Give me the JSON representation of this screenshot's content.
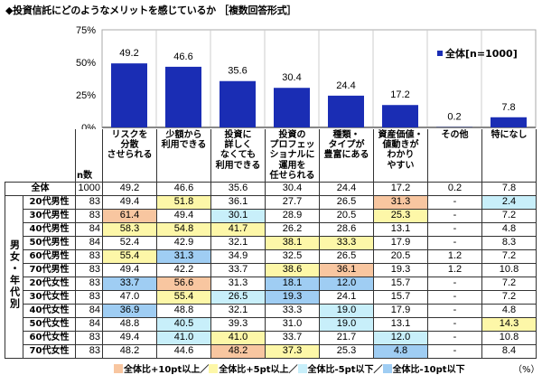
{
  "title": "◆投資信託にどのようなメリットを感じているか ［複数回答形式］",
  "chart_data": {
    "type": "bar",
    "categories": [
      "リスクを分散させられる",
      "少額から利用できる",
      "投資に詳しくなくても利用できる",
      "投資のプロフェッショナルに運用を任せられる",
      "種類・タイプが豊富にある",
      "資産価値・値動きがわかりやすい",
      "その他",
      "特になし"
    ],
    "series": [
      {
        "name": "全体[n=1000]",
        "values": [
          49.2,
          46.6,
          35.6,
          30.4,
          24.4,
          17.2,
          0.2,
          7.8
        ],
        "color": "#1a2db4"
      }
    ],
    "data_labels": [
      "49.2",
      "46.6",
      "35.6",
      "30.4",
      "24.4",
      "17.2",
      "0.2",
      "7.8"
    ],
    "yticks": [
      "0%",
      "25%",
      "50%",
      "75%"
    ],
    "ylim": [
      0,
      75
    ],
    "legend": "top-right",
    "legend_label": "全体[n=1000]",
    "grid": "vertical separators"
  },
  "table": {
    "headers": [
      [
        "リスクを",
        "分散",
        "させられる"
      ],
      [
        "少額から",
        "利用できる"
      ],
      [
        "投資に",
        "詳しく",
        "なくても",
        "利用できる"
      ],
      [
        "投資の",
        "プロフェッ",
        "ショナルに",
        "運用を",
        "任せられる"
      ],
      [
        "種類・",
        "タイプが",
        "豊富にある"
      ],
      [
        "資産価値・",
        "値動きが",
        "わかり",
        "やすい"
      ],
      [
        "その他"
      ],
      [
        "特になし"
      ]
    ],
    "n_header": "n数",
    "group_label": "男女・年代別",
    "total": {
      "label": "全体",
      "n": "1000",
      "values": [
        "49.2",
        "46.6",
        "35.6",
        "30.4",
        "24.4",
        "17.2",
        "0.2",
        "7.8"
      ]
    },
    "rows": [
      {
        "label": "20代男性",
        "n": "83",
        "values": [
          "49.4",
          "51.8",
          "36.1",
          "27.7",
          "26.5",
          "31.3",
          "-",
          "2.4"
        ]
      },
      {
        "label": "30代男性",
        "n": "83",
        "values": [
          "61.4",
          "49.4",
          "30.1",
          "28.9",
          "20.5",
          "25.3",
          "-",
          "7.2"
        ]
      },
      {
        "label": "40代男性",
        "n": "84",
        "values": [
          "58.3",
          "54.8",
          "41.7",
          "26.2",
          "28.6",
          "13.1",
          "-",
          "4.8"
        ]
      },
      {
        "label": "50代男性",
        "n": "84",
        "values": [
          "52.4",
          "42.9",
          "32.1",
          "38.1",
          "33.3",
          "17.9",
          "-",
          "8.3"
        ]
      },
      {
        "label": "60代男性",
        "n": "83",
        "values": [
          "55.4",
          "31.3",
          "34.9",
          "32.5",
          "26.5",
          "20.5",
          "1.2",
          "7.2"
        ]
      },
      {
        "label": "70代男性",
        "n": "83",
        "values": [
          "49.4",
          "42.2",
          "33.7",
          "38.6",
          "36.1",
          "19.3",
          "1.2",
          "10.8"
        ]
      },
      {
        "label": "20代女性",
        "n": "83",
        "values": [
          "33.7",
          "56.6",
          "31.3",
          "18.1",
          "12.0",
          "15.7",
          "-",
          "7.2"
        ]
      },
      {
        "label": "30代女性",
        "n": "83",
        "values": [
          "47.0",
          "55.4",
          "26.5",
          "19.3",
          "24.1",
          "15.7",
          "-",
          "7.2"
        ]
      },
      {
        "label": "40代女性",
        "n": "84",
        "values": [
          "36.9",
          "48.8",
          "32.1",
          "33.3",
          "19.0",
          "17.9",
          "-",
          "4.8"
        ]
      },
      {
        "label": "50代女性",
        "n": "84",
        "values": [
          "48.8",
          "40.5",
          "39.3",
          "31.0",
          "19.0",
          "13.1",
          "-",
          "14.3"
        ]
      },
      {
        "label": "60代女性",
        "n": "83",
        "values": [
          "49.4",
          "41.0",
          "41.0",
          "33.7",
          "21.7",
          "12.0",
          "-",
          "10.8"
        ]
      },
      {
        "label": "70代女性",
        "n": "83",
        "values": [
          "48.2",
          "44.6",
          "48.2",
          "37.3",
          "25.3",
          "4.8",
          "-",
          "8.4"
        ]
      }
    ]
  },
  "legend": {
    "items": [
      {
        "label": "全体比+10pt以上／",
        "color": "#f8c6a0"
      },
      {
        "label": "全体比+5pt以上／",
        "color": "#fdf7a8"
      },
      {
        "label": "全体比-5pt以下／",
        "color": "#c8effa"
      },
      {
        "label": "全体比-10pt以下",
        "color": "#9fcdf3"
      }
    ],
    "unit": "（%）"
  }
}
